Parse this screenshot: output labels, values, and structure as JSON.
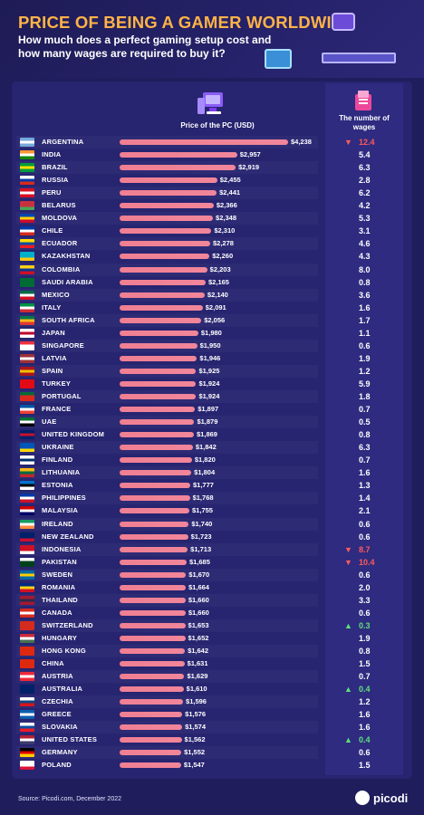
{
  "header": {
    "title": "PRICE OF BEING A GAMER WORLDWIDE",
    "subtitle": "How much does a perfect gaming setup cost and how many wages are required to buy it?"
  },
  "columns": {
    "price_label": "Price of the PC (USD)",
    "wages_label": "The number of wages"
  },
  "footer": {
    "source": "Source: Picodi.com, December 2022",
    "logo": "picodi"
  },
  "colors": {
    "background": "#1f1d5c",
    "title": "#ffb347",
    "bar": "#f07f92",
    "high_wage": "#ff5a5a",
    "low_wage": "#5ee07a"
  },
  "chart_data": {
    "type": "bar",
    "orientation": "horizontal",
    "xlim": [
      0,
      4238
    ],
    "categories": [
      "ARGENTINA",
      "INDIA",
      "BRAZIL",
      "RUSSIA",
      "PERU",
      "BELARUS",
      "MOLDOVA",
      "CHILE",
      "ECUADOR",
      "KAZAKHSTAN",
      "COLOMBIA",
      "SAUDI ARABIA",
      "MEXICO",
      "ITALY",
      "SOUTH AFRICA",
      "JAPAN",
      "SINGAPORE",
      "LATVIA",
      "SPAIN",
      "TURKEY",
      "PORTUGAL",
      "FRANCE",
      "UAE",
      "UNITED KINGDOM",
      "UKRAINE",
      "FINLAND",
      "LITHUANIA",
      "ESTONIA",
      "PHILIPPINES",
      "MALAYSIA",
      "IRELAND",
      "NEW ZEALAND",
      "INDONESIA",
      "PAKISTAN",
      "SWEDEN",
      "ROMANIA",
      "THAILAND",
      "CANADA",
      "SWITZERLAND",
      "HUNGARY",
      "HONG KONG",
      "CHINA",
      "AUSTRIA",
      "AUSTRALIA",
      "CZECHIA",
      "GREECE",
      "SLOVAKIA",
      "UNITED STATES",
      "GERMANY",
      "POLAND"
    ],
    "series": [
      {
        "name": "Price of the PC (USD)",
        "values": [
          4238,
          2957,
          2919,
          2455,
          2441,
          2366,
          2348,
          2310,
          2278,
          2260,
          2203,
          2165,
          2140,
          2091,
          2056,
          1980,
          1950,
          1946,
          1925,
          1924,
          1924,
          1897,
          1879,
          1869,
          1842,
          1820,
          1804,
          1777,
          1768,
          1755,
          1740,
          1723,
          1713,
          1685,
          1670,
          1664,
          1660,
          1660,
          1653,
          1652,
          1642,
          1631,
          1629,
          1610,
          1596,
          1576,
          1574,
          1562,
          1552,
          1547
        ],
        "labels": [
          "$4,238",
          "$2,957",
          "$2,919",
          "$2,455",
          "$2,441",
          "$2,366",
          "$2,348",
          "$2,310",
          "$2,278",
          "$2,260",
          "$2,203",
          "$2,165",
          "$2,140",
          "$2,091",
          "$2,056",
          "$1,980",
          "$1,950",
          "$1,946",
          "$1,925",
          "$1,924",
          "$1,924",
          "$1,897",
          "$1,879",
          "$1,869",
          "$1,842",
          "$1,820",
          "$1,804",
          "$1,777",
          "$1,768",
          "$1,755",
          "$1,740",
          "$1,723",
          "$1,713",
          "$1,685",
          "$1,670",
          "$1,664",
          "$1,660",
          "$1,660",
          "$1,653",
          "$1,652",
          "$1,642",
          "$1,631",
          "$1,629",
          "$1,610",
          "$1,596",
          "$1,576",
          "$1,574",
          "$1,562",
          "$1,552",
          "$1,547"
        ]
      },
      {
        "name": "The number of wages",
        "values": [
          12.4,
          5.4,
          6.3,
          2.8,
          6.2,
          4.2,
          5.3,
          3.1,
          4.6,
          4.3,
          8.0,
          0.8,
          3.6,
          1.6,
          1.7,
          1.1,
          0.6,
          1.9,
          1.2,
          5.9,
          1.8,
          0.7,
          0.5,
          0.8,
          6.3,
          0.7,
          1.6,
          1.3,
          1.4,
          2.1,
          0.6,
          0.6,
          8.7,
          10.4,
          0.6,
          2.0,
          3.3,
          0.6,
          0.3,
          1.9,
          0.8,
          1.5,
          0.7,
          0.4,
          1.2,
          1.6,
          1.6,
          0.4,
          0.6,
          1.5
        ],
        "labels": [
          "12.4",
          "5.4",
          "6.3",
          "2.8",
          "6.2",
          "4.2",
          "5.3",
          "3.1",
          "4.6",
          "4.3",
          "8.0",
          "0.8",
          "3.6",
          "1.6",
          "1.7",
          "1.1",
          "0.6",
          "1.9",
          "1.2",
          "5.9",
          "1.8",
          "0.7",
          "0.5",
          "0.8",
          "6.3",
          "0.7",
          "1.6",
          "1.3",
          "1.4",
          "2.1",
          "0.6",
          "0.6",
          "8.7",
          "10.4",
          "0.6",
          "2.0",
          "3.3",
          "0.6",
          "0.3",
          "1.9",
          "0.8",
          "1.5",
          "0.7",
          "0.4",
          "1.2",
          "1.6",
          "1.6",
          "0.4",
          "0.6",
          "1.5"
        ]
      }
    ],
    "highlight_high": [
      "ARGENTINA",
      "INDONESIA",
      "PAKISTAN"
    ],
    "highlight_low": [
      "SWITZERLAND",
      "AUSTRALIA",
      "UNITED STATES"
    ],
    "flag_colors": [
      [
        "#75aadb",
        "#ffffff",
        "#75aadb"
      ],
      [
        "#ff9933",
        "#ffffff",
        "#138808"
      ],
      [
        "#009c3b",
        "#ffdf00",
        "#009c3b"
      ],
      [
        "#ffffff",
        "#0039a6",
        "#d52b1e"
      ],
      [
        "#d91023",
        "#ffffff",
        "#d91023"
      ],
      [
        "#c8313e",
        "#c8313e",
        "#4aa657"
      ],
      [
        "#0046ae",
        "#ffd200",
        "#cc092f"
      ],
      [
        "#0039a6",
        "#ffffff",
        "#d52b1e"
      ],
      [
        "#ffdd00",
        "#034ea2",
        "#ed1c24"
      ],
      [
        "#00afca",
        "#00afca",
        "#fec50c"
      ],
      [
        "#fcd116",
        "#003893",
        "#ce1126"
      ],
      [
        "#006c35",
        "#006c35",
        "#006c35"
      ],
      [
        "#006847",
        "#ffffff",
        "#ce1126"
      ],
      [
        "#009246",
        "#ffffff",
        "#ce2b37"
      ],
      [
        "#007749",
        "#ffb81c",
        "#de3831"
      ],
      [
        "#ffffff",
        "#bc002d",
        "#ffffff"
      ],
      [
        "#ef3340",
        "#ffffff",
        "#ffffff"
      ],
      [
        "#9e3039",
        "#ffffff",
        "#9e3039"
      ],
      [
        "#aa151b",
        "#f1bf00",
        "#aa151b"
      ],
      [
        "#e30a17",
        "#e30a17",
        "#e30a17"
      ],
      [
        "#046a38",
        "#da291c",
        "#da291c"
      ],
      [
        "#0055a4",
        "#ffffff",
        "#ef4135"
      ],
      [
        "#00732f",
        "#ffffff",
        "#000000"
      ],
      [
        "#012169",
        "#c8102e",
        "#012169"
      ],
      [
        "#0057b7",
        "#0057b7",
        "#ffd700"
      ],
      [
        "#ffffff",
        "#002f6c",
        "#ffffff"
      ],
      [
        "#fdb913",
        "#006a44",
        "#c1272d"
      ],
      [
        "#0072ce",
        "#000000",
        "#ffffff"
      ],
      [
        "#0038a8",
        "#ffffff",
        "#ce1126"
      ],
      [
        "#cc0001",
        "#ffffff",
        "#010066"
      ],
      [
        "#169b62",
        "#ffffff",
        "#ff883e"
      ],
      [
        "#012169",
        "#012169",
        "#c8102e"
      ],
      [
        "#ce1126",
        "#ce1126",
        "#ffffff"
      ],
      [
        "#ffffff",
        "#01411c",
        "#01411c"
      ],
      [
        "#006aa7",
        "#fecc00",
        "#006aa7"
      ],
      [
        "#002b7f",
        "#fcd116",
        "#ce1126"
      ],
      [
        "#a51931",
        "#2d2a4a",
        "#a51931"
      ],
      [
        "#d52b1e",
        "#ffffff",
        "#d52b1e"
      ],
      [
        "#d52b1e",
        "#d52b1e",
        "#d52b1e"
      ],
      [
        "#ce2939",
        "#ffffff",
        "#477050"
      ],
      [
        "#de2910",
        "#de2910",
        "#de2910"
      ],
      [
        "#de2910",
        "#de2910",
        "#de2910"
      ],
      [
        "#ed2939",
        "#ffffff",
        "#ed2939"
      ],
      [
        "#012169",
        "#012169",
        "#012169"
      ],
      [
        "#ffffff",
        "#11457e",
        "#d7141a"
      ],
      [
        "#0d5eaf",
        "#ffffff",
        "#0d5eaf"
      ],
      [
        "#ffffff",
        "#0b4ea2",
        "#ee1c25"
      ],
      [
        "#b22234",
        "#ffffff",
        "#3c3b6e"
      ],
      [
        "#000000",
        "#dd0000",
        "#ffce00"
      ],
      [
        "#ffffff",
        "#ffffff",
        "#dc143c"
      ]
    ]
  }
}
